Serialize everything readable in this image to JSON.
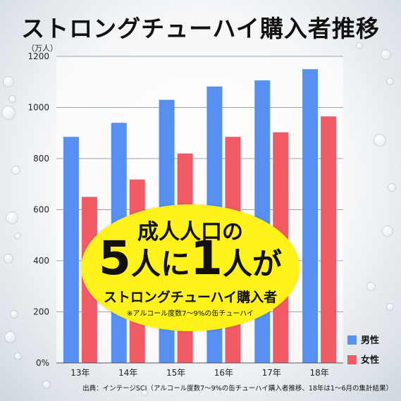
{
  "title": "ストロングチューハイ購入者推移",
  "unit_label": "（万人）",
  "colors": {
    "male": "#5590f2",
    "female": "#f25a66"
  },
  "legend": {
    "male": "男性",
    "female": "女性"
  },
  "callout": {
    "line1": "成人人口の",
    "num1": "5",
    "word1": "人に",
    "num2": "1",
    "word2": "人が",
    "line3": "ストロングチューハイ購入者",
    "note": "※アルコール度数7～9%の缶チューハイ"
  },
  "source": "出典：インテージSCI（アルコール度数7～9%の缶チューハイ購入者推移、18年は1～6月の集計結果）",
  "chart_data": {
    "type": "bar",
    "title": "ストロングチューハイ購入者推移",
    "ylabel": "（万人）",
    "categories": [
      "13年",
      "14年",
      "15年",
      "16年",
      "17年",
      "18年"
    ],
    "series": [
      {
        "name": "男性",
        "values": [
          885,
          940,
          1030,
          1082,
          1106,
          1150
        ]
      },
      {
        "name": "女性",
        "values": [
          650,
          718,
          820,
          885,
          903,
          965
        ]
      }
    ],
    "ylim": [
      0,
      1200
    ],
    "yticks": [
      0,
      200,
      400,
      600,
      800,
      1000,
      1200
    ],
    "ytick_labels": [
      "0%",
      "200",
      "400",
      "600",
      "800",
      "1000",
      "1200"
    ],
    "grid": true,
    "legend_position": "bottom-right"
  }
}
